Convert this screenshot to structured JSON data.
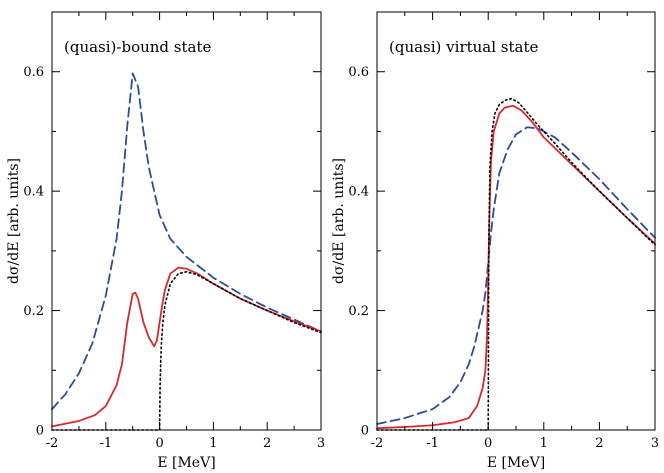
{
  "chart_data": [
    {
      "type": "line",
      "title": "(quasi)-bound state",
      "xlabel": "E [MeV]",
      "ylabel": "dσ/dE [arb. units]",
      "xlim": [
        -2,
        3
      ],
      "ylim": [
        0,
        0.7
      ],
      "xticks": [
        -2,
        -1,
        0,
        1,
        2,
        3
      ],
      "yticks": [
        0,
        0.2,
        0.4,
        0.6
      ],
      "xtick_labels": [
        "-2",
        "-1",
        "0",
        "1",
        "2",
        "3"
      ],
      "ytick_labels": [
        "0",
        "0.2",
        "0.4",
        "0.6"
      ],
      "series": [
        {
          "name": "dashed-blue",
          "color": "#2b4c9b",
          "style": "dashed",
          "x": [
            -2,
            -1.75,
            -1.5,
            -1.25,
            -1.0,
            -0.8,
            -0.7,
            -0.6,
            -0.5,
            -0.4,
            -0.3,
            -0.2,
            -0.1,
            0.0,
            0.2,
            0.5,
            1.0,
            1.5,
            2.0,
            2.5,
            3.0
          ],
          "y": [
            0.035,
            0.06,
            0.095,
            0.145,
            0.225,
            0.32,
            0.4,
            0.51,
            0.597,
            0.575,
            0.5,
            0.44,
            0.4,
            0.36,
            0.32,
            0.29,
            0.255,
            0.228,
            0.205,
            0.185,
            0.165
          ]
        },
        {
          "name": "solid-red",
          "color": "#d62a2a",
          "style": "solid",
          "x": [
            -2,
            -1.5,
            -1.2,
            -1.0,
            -0.8,
            -0.7,
            -0.6,
            -0.5,
            -0.45,
            -0.4,
            -0.3,
            -0.2,
            -0.1,
            -0.05,
            0.0,
            0.05,
            0.1,
            0.2,
            0.35,
            0.5,
            0.7,
            1.0,
            1.5,
            2.0,
            2.5,
            3.0
          ],
          "y": [
            0.006,
            0.015,
            0.025,
            0.04,
            0.075,
            0.11,
            0.18,
            0.228,
            0.23,
            0.22,
            0.18,
            0.155,
            0.14,
            0.15,
            0.18,
            0.21,
            0.235,
            0.262,
            0.272,
            0.27,
            0.262,
            0.245,
            0.22,
            0.2,
            0.182,
            0.165
          ]
        },
        {
          "name": "dotted-black",
          "color": "#000000",
          "style": "dotted",
          "x": [
            -2,
            -0.02,
            0.0,
            0.01,
            0.03,
            0.06,
            0.1,
            0.2,
            0.35,
            0.5,
            0.7,
            1.0,
            1.5,
            2.0,
            2.5,
            3.0
          ],
          "y": [
            0,
            0,
            0.0,
            0.08,
            0.14,
            0.18,
            0.21,
            0.245,
            0.262,
            0.265,
            0.26,
            0.245,
            0.22,
            0.2,
            0.18,
            0.163
          ]
        }
      ]
    },
    {
      "type": "line",
      "title": "(quasi) virtual state",
      "xlabel": "E [MeV]",
      "ylabel": "dσ/dE [arb. units]",
      "xlim": [
        -2,
        3
      ],
      "ylim": [
        0,
        0.7
      ],
      "xticks": [
        -2,
        -1,
        0,
        1,
        2,
        3
      ],
      "yticks": [
        0,
        0.2,
        0.4,
        0.6
      ],
      "xtick_labels": [
        "-2",
        "-1",
        "0",
        "1",
        "2",
        "3"
      ],
      "ytick_labels": [
        "0",
        "0.2",
        "0.4",
        "0.6"
      ],
      "series": [
        {
          "name": "dashed-blue",
          "color": "#2b4c9b",
          "style": "dashed",
          "x": [
            -2,
            -1.5,
            -1.0,
            -0.7,
            -0.5,
            -0.35,
            -0.25,
            -0.15,
            -0.1,
            -0.05,
            0.0,
            0.05,
            0.1,
            0.2,
            0.35,
            0.5,
            0.7,
            0.9,
            1.2,
            1.5,
            2.0,
            2.5,
            3.0
          ],
          "y": [
            0.01,
            0.02,
            0.035,
            0.055,
            0.08,
            0.11,
            0.14,
            0.18,
            0.2,
            0.23,
            0.28,
            0.33,
            0.37,
            0.43,
            0.47,
            0.495,
            0.507,
            0.505,
            0.49,
            0.465,
            0.42,
            0.37,
            0.322
          ]
        },
        {
          "name": "solid-red",
          "color": "#d62a2a",
          "style": "solid",
          "x": [
            -2,
            -1.5,
            -1.0,
            -0.6,
            -0.35,
            -0.2,
            -0.1,
            -0.05,
            -0.02,
            0.0,
            0.02,
            0.05,
            0.1,
            0.2,
            0.3,
            0.45,
            0.6,
            0.8,
            1.0,
            1.5,
            2.0,
            2.5,
            3.0
          ],
          "y": [
            0.003,
            0.005,
            0.008,
            0.013,
            0.02,
            0.04,
            0.07,
            0.1,
            0.16,
            0.25,
            0.35,
            0.45,
            0.5,
            0.53,
            0.54,
            0.543,
            0.535,
            0.515,
            0.49,
            0.445,
            0.4,
            0.355,
            0.312
          ]
        },
        {
          "name": "dotted-black",
          "color": "#000000",
          "style": "dotted",
          "x": [
            -2,
            -0.02,
            0.0,
            0.01,
            0.03,
            0.07,
            0.12,
            0.2,
            0.3,
            0.42,
            0.55,
            0.7,
            0.9,
            1.2,
            1.5,
            2.0,
            2.5,
            3.0
          ],
          "y": [
            0,
            0,
            0.0,
            0.3,
            0.44,
            0.5,
            0.53,
            0.545,
            0.552,
            0.555,
            0.548,
            0.532,
            0.51,
            0.48,
            0.448,
            0.4,
            0.355,
            0.31
          ]
        }
      ]
    }
  ]
}
